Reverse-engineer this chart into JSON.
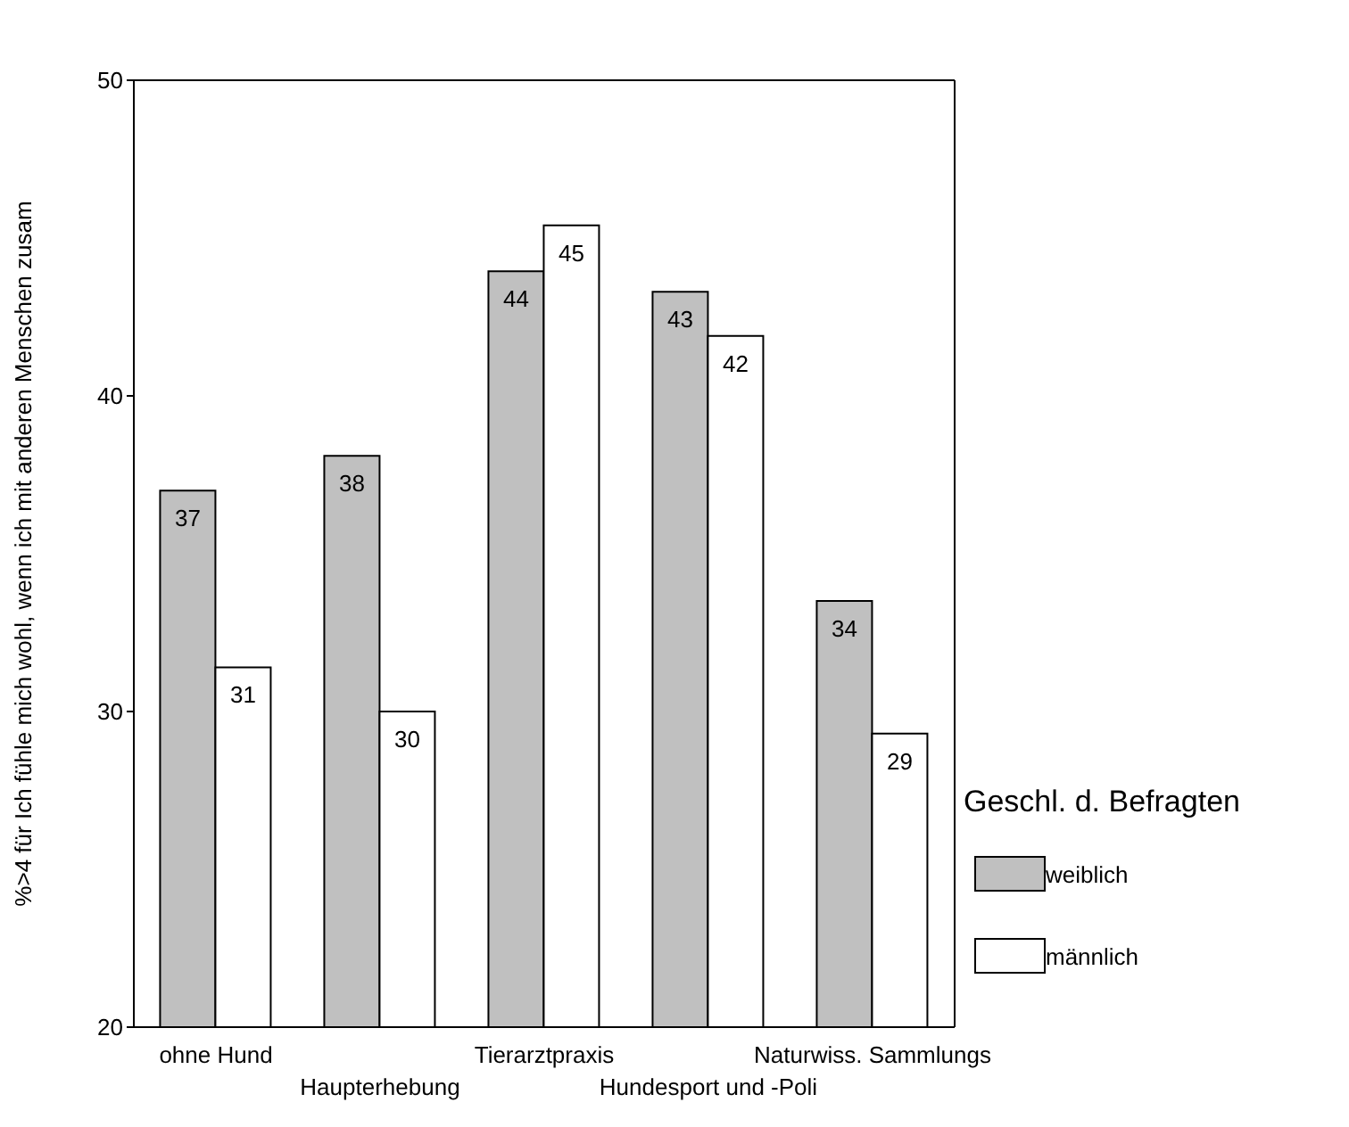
{
  "chart_data": {
    "type": "bar",
    "ylabel": "%>4 für Ich fühle mich wohl, wenn ich mit anderen Menschen zusam",
    "categories": [
      "ohne Hund",
      "Haupterhebung",
      "Tierarztpraxis",
      "Hundesport und -Poli",
      "Naturwiss. Sammlungs"
    ],
    "series": [
      {
        "name": "weiblich",
        "color": "#c0c0c0",
        "values": [
          37.0,
          38.1,
          43.95,
          43.3,
          33.5
        ],
        "value_labels": [
          "37",
          "38",
          "44",
          "43",
          "34"
        ]
      },
      {
        "name": "männlich",
        "color": "#ffffff",
        "values": [
          31.4,
          30.0,
          45.4,
          41.9,
          29.3
        ],
        "value_labels": [
          "31",
          "30",
          "45",
          "42",
          "29"
        ]
      }
    ],
    "legend_title": "Geschl. d. Befragten",
    "legend": "right",
    "ylim": [
      20,
      50
    ],
    "yticks": [
      20,
      30,
      40,
      50
    ],
    "grid": false
  }
}
